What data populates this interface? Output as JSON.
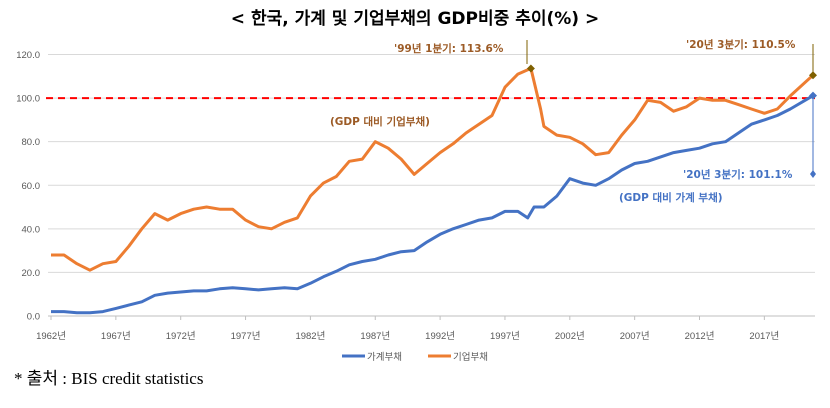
{
  "chart_data": {
    "type": "line",
    "title": "< 한국, 가계 및 기업부채의 GDP비중 추이(%) >",
    "xlabel": "",
    "ylabel": "",
    "ylim": [
      0,
      120
    ],
    "yticks": [
      "0.0",
      "20.0",
      "40.0",
      "60.0",
      "80.0",
      "100.0",
      "120.0"
    ],
    "xticks": [
      "1962년",
      "1967년",
      "1972년",
      "1977년",
      "1982년",
      "1987년",
      "1992년",
      "1997년",
      "2002년",
      "2007년",
      "2012년",
      "2017년"
    ],
    "grid": true,
    "legend_position": "bottom",
    "reference_line": {
      "value": 100,
      "color": "#FF0000",
      "style": "dashed"
    },
    "series": [
      {
        "name": "가계부채",
        "color": "#4472C4",
        "x": [
          1962,
          1963,
          1964,
          1965,
          1966,
          1967,
          1968,
          1969,
          1970,
          1971,
          1972,
          1973,
          1974,
          1975,
          1976,
          1977,
          1978,
          1979,
          1980,
          1981,
          1982,
          1983,
          1984,
          1985,
          1986,
          1987,
          1988,
          1989,
          1990,
          1991,
          1992,
          1993,
          1994,
          1995,
          1996,
          1997,
          1998,
          1998.75,
          1999.25,
          2000,
          2001,
          2002,
          2003,
          2004,
          2005,
          2006,
          2007,
          2008,
          2009,
          2010,
          2011,
          2012,
          2013,
          2014,
          2015,
          2016,
          2017,
          2018,
          2019,
          2020.75
        ],
        "values": [
          2,
          2,
          1.5,
          1.5,
          2,
          3.5,
          5,
          6.5,
          9.5,
          10.5,
          11,
          11.5,
          11.5,
          12.5,
          13,
          12.5,
          12,
          12.5,
          13,
          12.5,
          15,
          18,
          20.5,
          23.5,
          25,
          26,
          28,
          29.5,
          30,
          34,
          37.5,
          40,
          42,
          44,
          45,
          48,
          48,
          45,
          50,
          50,
          55,
          63,
          61,
          60,
          63,
          67,
          70,
          71,
          73,
          75,
          76,
          77,
          79,
          80,
          84,
          88,
          90,
          92,
          95,
          101.1
        ]
      },
      {
        "name": "기업부채",
        "color": "#ED7D31",
        "x": [
          1962,
          1963,
          1964,
          1965,
          1966,
          1967,
          1968,
          1969,
          1970,
          1971,
          1972,
          1973,
          1974,
          1975,
          1976,
          1977,
          1978,
          1979,
          1980,
          1981,
          1982,
          1983,
          1984,
          1985,
          1986,
          1987,
          1988,
          1989,
          1990,
          1991,
          1992,
          1993,
          1994,
          1995,
          1996,
          1997,
          1998,
          1999,
          1999.75,
          2000,
          2001,
          2002,
          2003,
          2004,
          2005,
          2006,
          2007,
          2008,
          2009,
          2010,
          2011,
          2012,
          2013,
          2014,
          2015,
          2016,
          2017,
          2018,
          2019,
          2020.75
        ],
        "values": [
          28,
          28,
          24,
          21,
          24,
          25,
          32,
          40,
          47,
          44,
          47,
          49,
          50,
          49,
          49,
          44,
          41,
          40,
          43,
          45,
          55,
          61,
          64,
          71,
          72,
          80,
          77,
          72,
          65,
          70,
          75,
          79,
          84,
          88,
          92,
          105,
          111,
          113.6,
          95,
          87,
          83,
          82,
          79,
          74,
          75,
          83,
          90,
          99,
          98,
          94,
          96,
          100,
          99,
          99,
          97,
          95,
          93,
          95,
          101,
          110.5
        ]
      }
    ],
    "annotations": {
      "corp_peak": "'99년 1분기: 113.6%",
      "corp_latest": "'20년 3분기: 110.5%",
      "household_latest": "'20년 3분기: 101.1%",
      "corp_label": "(GDP 대비 기업부채)",
      "household_label": "(GDP 대비 가계 부채)"
    }
  },
  "source": "* 출처 : BIS credit statistics"
}
